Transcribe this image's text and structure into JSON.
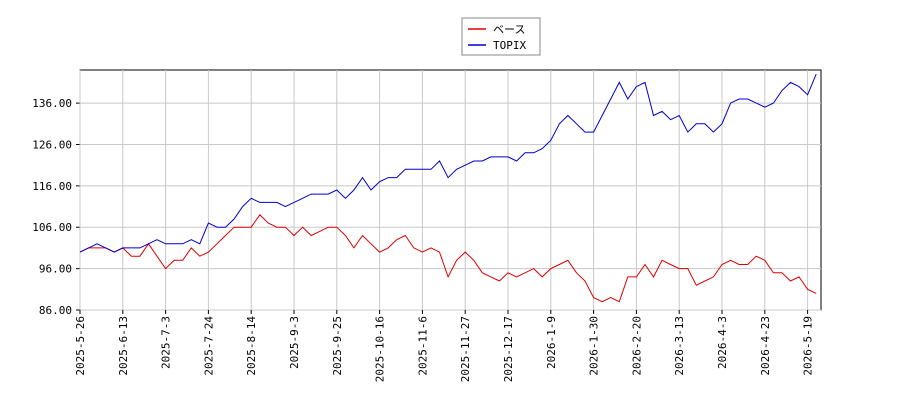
{
  "chart_data": {
    "type": "line",
    "categories": [
      "2025-5-26",
      null,
      null,
      null,
      null,
      "2025-6-13",
      null,
      null,
      null,
      null,
      "2025-7-3",
      null,
      null,
      null,
      null,
      "2025-7-24",
      null,
      null,
      null,
      null,
      "2025-8-14",
      null,
      null,
      null,
      null,
      "2025-9-3",
      null,
      null,
      null,
      null,
      "2025-9-25",
      null,
      null,
      null,
      null,
      "2025-10-16",
      null,
      null,
      null,
      null,
      "2025-11-6",
      null,
      null,
      null,
      null,
      "2025-11-27",
      null,
      null,
      null,
      null,
      "2025-12-17",
      null,
      null,
      null,
      null,
      "2026-1-9",
      null,
      null,
      null,
      null,
      "2026-1-30",
      null,
      null,
      null,
      null,
      "2026-2-20",
      null,
      null,
      null,
      null,
      "2026-3-13",
      null,
      null,
      null,
      null,
      "2026-4-3",
      null,
      null,
      null,
      null,
      "2026-4-23",
      null,
      null,
      null,
      null,
      "2026-5-19",
      null
    ],
    "series": [
      {
        "name": "ベース",
        "color": "#dd0000",
        "values": [
          100,
          101,
          101,
          101,
          100,
          101,
          99,
          99,
          102,
          99,
          96,
          98,
          98,
          101,
          99,
          100,
          102,
          104,
          106,
          106,
          106,
          109,
          107,
          106,
          106,
          104,
          106,
          104,
          105,
          106,
          106,
          104,
          101,
          104,
          102,
          100,
          101,
          103,
          104,
          101,
          100,
          101,
          100,
          94,
          98,
          100,
          98,
          95,
          94,
          93,
          95,
          94,
          95,
          96,
          94,
          96,
          97,
          98,
          95,
          93,
          89,
          88,
          89,
          88,
          94,
          94,
          97,
          94,
          98,
          97,
          96,
          96,
          92,
          93,
          94,
          97,
          98,
          97,
          97,
          99,
          98,
          95,
          95,
          93,
          94,
          91,
          90
        ]
      },
      {
        "name": "TOPIX",
        "color": "#0000cc",
        "values": [
          100,
          101,
          102,
          101,
          100,
          101,
          101,
          101,
          102,
          103,
          102,
          102,
          102,
          103,
          102,
          107,
          106,
          106,
          108,
          111,
          113,
          112,
          112,
          112,
          111,
          112,
          113,
          114,
          114,
          114,
          115,
          113,
          115,
          118,
          115,
          117,
          118,
          118,
          120,
          120,
          120,
          120,
          122,
          118,
          120,
          121,
          122,
          122,
          123,
          123,
          123,
          122,
          124,
          124,
          125,
          127,
          131,
          133,
          131,
          129,
          129,
          133,
          137,
          141,
          137,
          140,
          141,
          133,
          134,
          132,
          133,
          129,
          131,
          131,
          129,
          131,
          136,
          137,
          137,
          136,
          135,
          136,
          139,
          141,
          140,
          138,
          143
        ]
      }
    ],
    "ylim": [
      86,
      144
    ],
    "yticks": [
      {
        "value": 86,
        "label": "86.00"
      },
      {
        "value": 96,
        "label": "96.00"
      },
      {
        "value": 106,
        "label": "106.00"
      },
      {
        "value": 116,
        "label": "116.00"
      },
      {
        "value": 126,
        "label": "126.00"
      },
      {
        "value": 136,
        "label": "136.00"
      }
    ],
    "grid": true,
    "legend": "top"
  }
}
